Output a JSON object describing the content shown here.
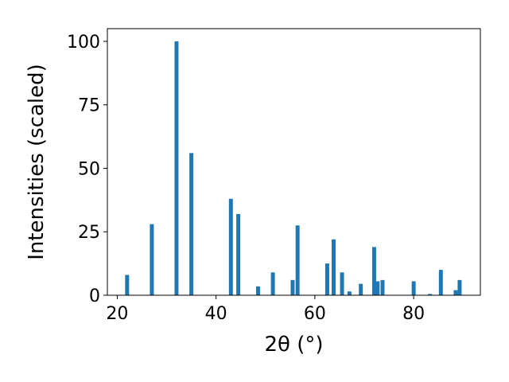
{
  "chart_data": {
    "type": "bar",
    "title": "",
    "xlabel": "2θ (°)",
    "ylabel": "Intensities (scaled)",
    "xlim": [
      18,
      93.5
    ],
    "ylim": [
      0,
      105
    ],
    "xticks": [
      20,
      40,
      60,
      80
    ],
    "yticks": [
      0,
      25,
      50,
      75,
      100
    ],
    "grid": false,
    "bar_color": "#1f77b4",
    "bar_width": 0.8,
    "x": [
      22.0,
      27.0,
      32.0,
      35.0,
      43.0,
      44.5,
      48.5,
      51.5,
      55.5,
      56.5,
      62.5,
      63.8,
      65.5,
      67.0,
      69.3,
      72.0,
      72.7,
      73.7,
      80.0,
      83.3,
      85.5,
      88.5,
      89.3
    ],
    "values": [
      8.0,
      28.0,
      100.0,
      56.0,
      38.0,
      32.0,
      3.5,
      9.0,
      6.0,
      27.5,
      12.5,
      22.0,
      9.0,
      1.5,
      4.5,
      19.0,
      5.5,
      6.0,
      5.5,
      0.5,
      10.0,
      2.0,
      6.0
    ]
  }
}
